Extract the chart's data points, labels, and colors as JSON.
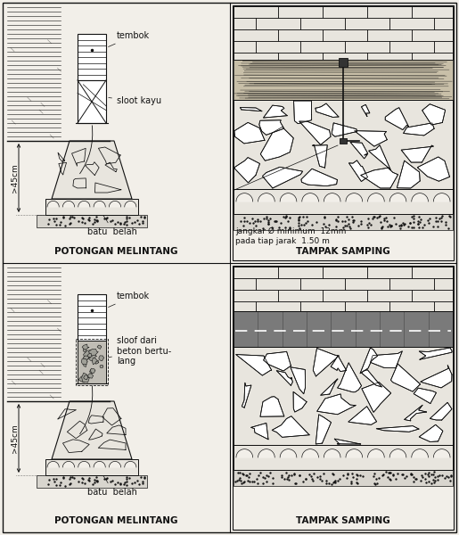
{
  "bg_color": "#f2efe9",
  "line_color": "#111111",
  "panel_labels": {
    "top_left": "POTONGAN MELINTANG",
    "top_right": "TAMPAK SAMPING",
    "bottom_left": "POTONGAN MELINTANG",
    "bottom_right": "TAMPAK SAMPING"
  },
  "annotations_top_left": {
    "tembok": "tembok",
    "sloot_kayu": "sloot kayu",
    "batu_belah": "batu  belah",
    "dim_45cm": ">45cm"
  },
  "annotations_top_right": {
    "jangkar": "jangkar Ø minimum  12mm\npada tiap jarak  1.50 m"
  },
  "annotations_bottom_left": {
    "tembok": "tembok",
    "sloot_beton": "sloof dari\nbeton bertu-\nlang",
    "batu_belah": "batu  belah",
    "dim_45cm": ">45cm"
  }
}
